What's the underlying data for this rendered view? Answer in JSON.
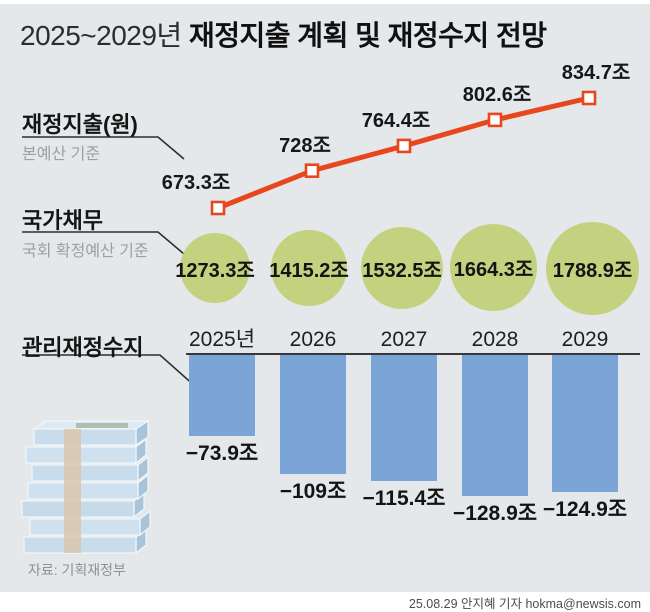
{
  "header": {
    "title_prefix": "2025~2029년",
    "title_main": "재정지출 계획 및 재정수지 전망"
  },
  "sections": {
    "expenditure": {
      "label": "재정지출(원)",
      "sublabel": "본예산 기준"
    },
    "debt": {
      "label": "국가채무",
      "sublabel": "국회 확정예산 기준"
    },
    "balance": {
      "label": "관리재정수지"
    }
  },
  "chart_data": [
    {
      "type": "line",
      "name": "재정지출(원) 본예산 기준",
      "unit": "조",
      "categories": [
        "2025년",
        "2026",
        "2027",
        "2028",
        "2029"
      ],
      "values": [
        673.3,
        728,
        764.4,
        802.6,
        834.7
      ],
      "labels": [
        "673.3조",
        "728조",
        "764.4조",
        "802.6조",
        "834.7조"
      ],
      "color": "#e8471d",
      "marker": "open-square",
      "grid": false,
      "axes_visible": false
    },
    {
      "type": "bubble",
      "name": "국가채무 국회 확정예산 기준",
      "unit": "조",
      "categories": [
        "2025년",
        "2026",
        "2027",
        "2028",
        "2029"
      ],
      "values": [
        1273.3,
        1415.2,
        1532.5,
        1664.3,
        1788.9
      ],
      "labels": [
        "1273.3조",
        "1415.2조",
        "1532.5조",
        "1664.3조",
        "1788.9조"
      ],
      "color": "#c4d17e"
    },
    {
      "type": "bar",
      "name": "관리재정수지",
      "unit": "조",
      "categories": [
        "2025년",
        "2026",
        "2027",
        "2028",
        "2029"
      ],
      "values": [
        -73.9,
        -109,
        -115.4,
        -128.9,
        -124.9
      ],
      "labels": [
        "−73.9조",
        "−109조",
        "−115.4조",
        "−128.9조",
        "−124.9조"
      ],
      "color": "#7ba5d7",
      "baseline": 0,
      "grid": false
    }
  ],
  "footer": {
    "source": "자료: 기획재정부",
    "credit": "25.08.29 안지혜 기자 hokma@newsis.com"
  }
}
